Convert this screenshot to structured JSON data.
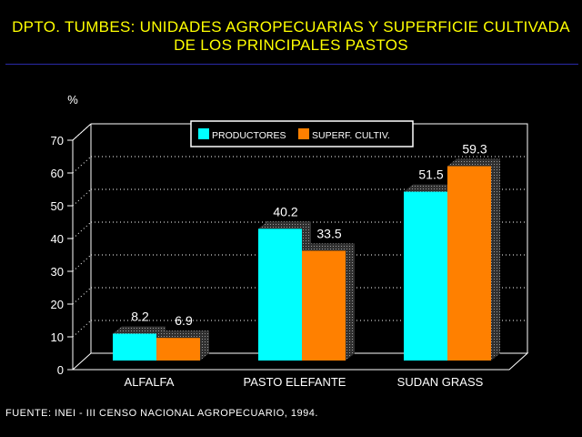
{
  "header": {
    "title_line1": "DPTO. TUMBES: UNIDADES AGROPECUARIAS Y SUPERFICIE CULTIVADA",
    "title_line2": "DE LOS PRINCIPALES PASTOS"
  },
  "footer": {
    "source": "FUENTE: INEI - III CENSO NACIONAL AGROPECUARIO, 1994."
  },
  "colors": {
    "background": "#000000",
    "title": "#ffff00",
    "productores": "#00ffff",
    "superficie": "#ff8000"
  },
  "chart_data": {
    "type": "bar",
    "title": "DPTO. TUMBES: UNIDADES AGROPECUARIAS Y SUPERFICIE CULTIVADA DE LOS PRINCIPALES PASTOS",
    "ylabel": "%",
    "xlabel": "",
    "ylim": [
      0,
      70
    ],
    "yticks": [
      0,
      10,
      20,
      30,
      40,
      50,
      60,
      70
    ],
    "grid": true,
    "legend_position": "top-center",
    "categories": [
      "ALFALFA",
      "PASTO ELEFANTE",
      "SUDAN GRASS"
    ],
    "series": [
      {
        "name": "PRODUCTORES",
        "color": "#00ffff",
        "values": [
          8.2,
          40.2,
          51.5
        ],
        "labels": [
          "8.2",
          "40.2",
          "51.5"
        ]
      },
      {
        "name": "SUPERF. CULTIV.",
        "color": "#ff8000",
        "values": [
          6.9,
          33.5,
          59.3
        ],
        "labels": [
          "6.9",
          "33.5",
          "59.3"
        ]
      }
    ]
  }
}
